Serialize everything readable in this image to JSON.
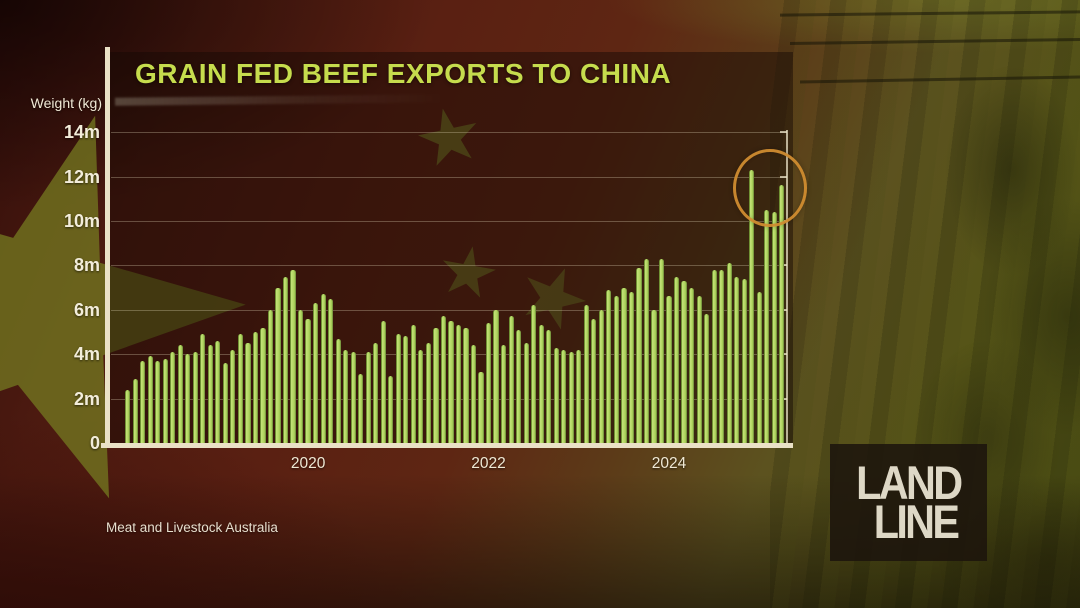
{
  "chart": {
    "title": "GRAIN FED BEEF EXPORTS TO CHINA",
    "y_axis_label": "Weight (kg)",
    "source": "Meat and Livestock Australia"
  },
  "logo": {
    "line1": "LAND",
    "line2": "LINE"
  },
  "colors": {
    "title_green": "#c6dc4d",
    "bar_fill": "#b4d863",
    "bar_edge": "#5f7a20",
    "axis_cream": "#eae1c6",
    "label_cream": "#f3edda",
    "annotation_orange": "#cf8c30",
    "flag_red": "#5a2012",
    "flag_star_olive": "#72741f",
    "background_olive": "#474a12",
    "logo_box": "#1c150c",
    "logo_text": "#ded8c6"
  },
  "chart_data": {
    "type": "bar",
    "title": "GRAIN FED BEEF EXPORTS TO CHINA",
    "xlabel": "",
    "ylabel": "Weight (kg)",
    "unit": "million kg",
    "frequency": "monthly",
    "x_start": "2018-01",
    "x_end": "2025-04",
    "ylim_m": [
      0,
      14
    ],
    "y_tick_labels": [
      "14m",
      "12m",
      "10m",
      "8m",
      "6m",
      "4m",
      "2m",
      "0"
    ],
    "y_tick_values_m": [
      14,
      12,
      10,
      8,
      6,
      4,
      2,
      0
    ],
    "x_ticks": [
      {
        "label": "2020",
        "month_index": 24
      },
      {
        "label": "2022",
        "month_index": 48
      },
      {
        "label": "2024",
        "month_index": 72
      }
    ],
    "grid": true,
    "legend": "none",
    "values_million_kg": [
      2.4,
      2.9,
      3.7,
      3.9,
      3.7,
      3.8,
      4.1,
      4.4,
      4.0,
      4.1,
      4.9,
      4.4,
      4.6,
      3.6,
      4.2,
      4.9,
      4.5,
      5.0,
      5.2,
      6.0,
      7.0,
      7.5,
      7.8,
      6.0,
      5.6,
      6.3,
      6.7,
      6.5,
      4.7,
      4.2,
      4.1,
      3.1,
      4.1,
      4.5,
      5.5,
      3.0,
      4.9,
      4.8,
      5.3,
      4.2,
      4.5,
      5.2,
      5.7,
      5.5,
      5.3,
      5.2,
      4.4,
      3.2,
      5.4,
      6.0,
      4.4,
      5.7,
      5.1,
      4.5,
      6.2,
      5.3,
      5.1,
      4.3,
      4.2,
      4.1,
      4.2,
      6.2,
      5.6,
      6.0,
      6.9,
      6.6,
      7.0,
      6.8,
      7.9,
      8.3,
      6.0,
      8.3,
      6.6,
      7.5,
      7.3,
      7.0,
      6.6,
      5.8,
      7.8,
      7.8,
      8.1,
      7.5,
      7.4,
      12.3,
      6.8,
      10.5,
      10.4,
      11.6
    ],
    "annotation": {
      "shape": "circle",
      "color": "#cf8c30",
      "highlights": "record export spike of final months (Dec 2024 peak 12.3m and recent 10.4m-11.6m bars)"
    }
  }
}
